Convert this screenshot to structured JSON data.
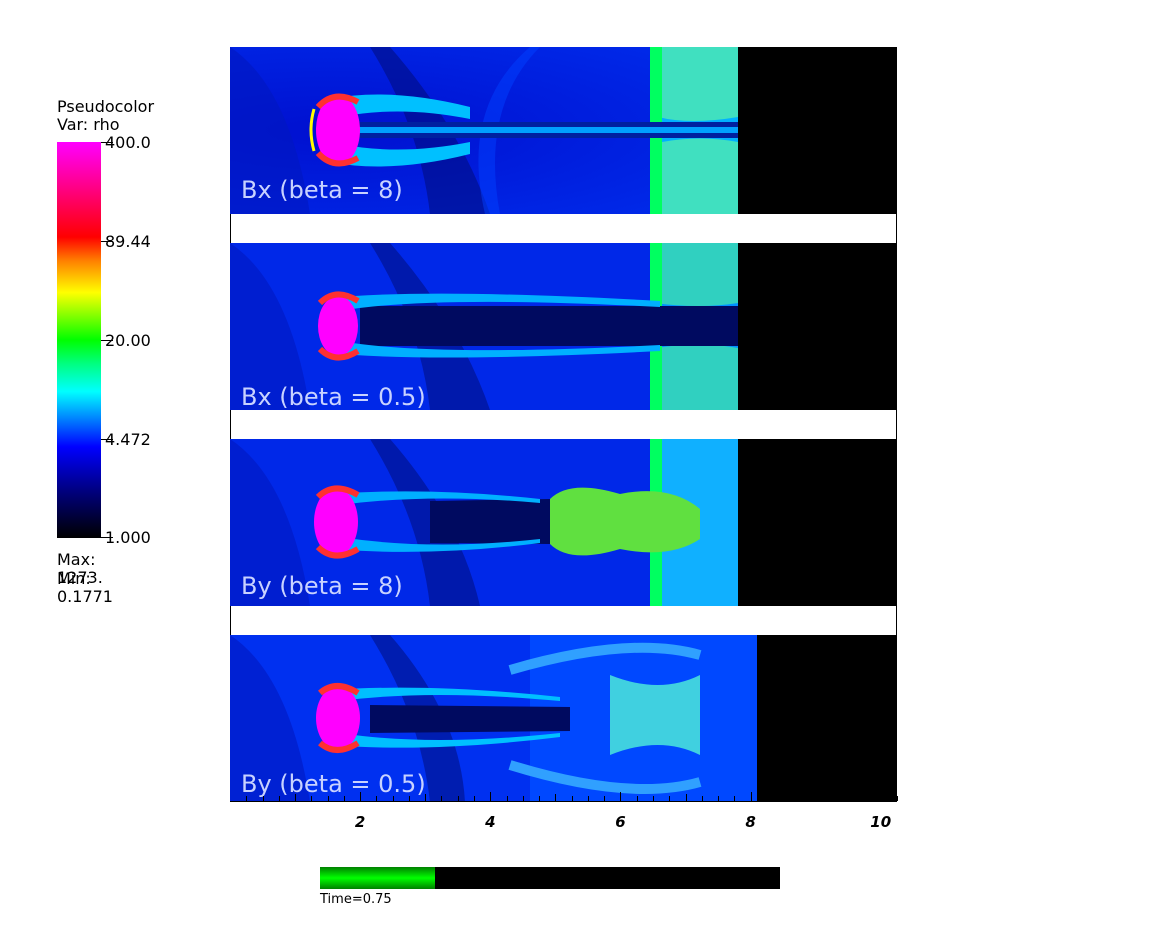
{
  "legend": {
    "title_line1": "Pseudocolor",
    "title_line2": "Var: rho",
    "ticks": [
      "400.0",
      "89.44",
      "20.00",
      "4.472",
      "1.000"
    ],
    "max": "Max:  1273.",
    "min": "Min:  0.1771"
  },
  "panels": [
    {
      "label": "Bx (beta = 8)"
    },
    {
      "label": "Bx (beta = 0.5)"
    },
    {
      "label": "By (beta = 8)"
    },
    {
      "label": "By (beta = 0.5)"
    }
  ],
  "axis": {
    "labels": [
      "2",
      "4",
      "6",
      "8",
      "10"
    ],
    "range": [
      0,
      10.25
    ]
  },
  "time": {
    "label": "Time=0.75",
    "progress": 0.25
  }
}
